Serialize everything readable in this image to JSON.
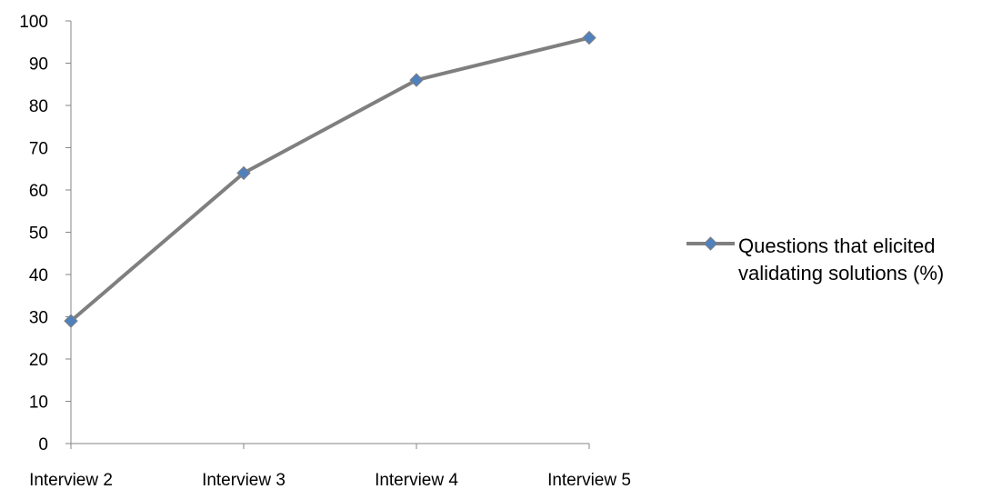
{
  "chart_data": {
    "type": "line",
    "categories": [
      "Interview 2",
      "Interview 3",
      "Interview 4",
      "Interview 5"
    ],
    "series": [
      {
        "name": "Questions that elicited validating solutions (%)",
        "legend_lines": [
          "Questions that elicited",
          "validating solutions (%)"
        ],
        "values": [
          29,
          64,
          86,
          96
        ],
        "color": "#7f7f7f",
        "marker_color": "#4f81bd"
      }
    ],
    "title": "",
    "xlabel": "",
    "ylabel": "",
    "ylim": [
      0,
      100
    ],
    "yticks": [
      0,
      10,
      20,
      30,
      40,
      50,
      60,
      70,
      80,
      90,
      100
    ],
    "grid": false,
    "legend_position": "right"
  }
}
